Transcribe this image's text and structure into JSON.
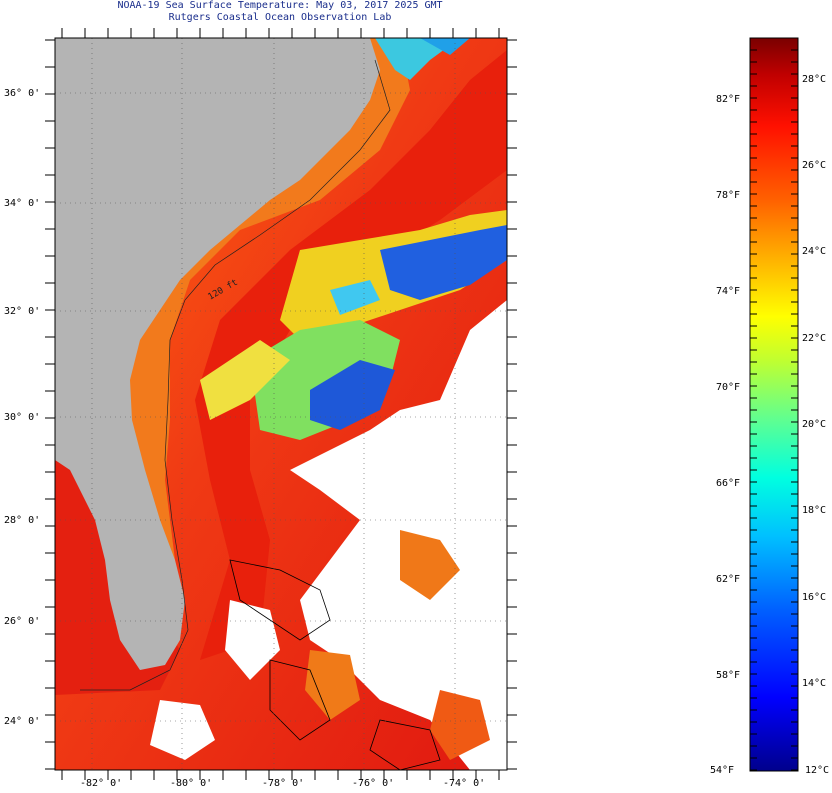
{
  "title": {
    "line1": "NOAA-19 Sea Surface Temperature:  May 03, 2017 2025 GMT",
    "line2": "Rutgers Coastal Ocean Observation Lab"
  },
  "map": {
    "region": "U.S. Southeast coast, Florida, Bahamas, western Atlantic",
    "lat_labels": [
      "36° 0'",
      "34° 0'",
      "32° 0'",
      "30° 0'",
      "28° 0'",
      "26° 0'",
      "24° 0'"
    ],
    "lon_labels": [
      "-82° 0'",
      "-80° 0'",
      "-78° 0'",
      "-76° 0'",
      "-74° 0'"
    ],
    "contour_label": "120 ft",
    "colors": {
      "land": "#b4b4b4",
      "cloud": "#ffffff",
      "warm_water": "#e81e10",
      "shelf_water": "#f07a18",
      "cool_water": "#1e6ee0"
    }
  },
  "colorbar": {
    "fahrenheit_labels": [
      "82°F",
      "78°F",
      "74°F",
      "70°F",
      "66°F",
      "62°F",
      "58°F",
      "54°F"
    ],
    "celsius_labels": [
      "28°C",
      "26°C",
      "24°C",
      "22°C",
      "20°C",
      "18°C",
      "16°C",
      "14°C",
      "12°C"
    ],
    "range_c": [
      12,
      29
    ],
    "colormap": [
      "#00008c",
      "#0000ff",
      "#0080ff",
      "#00e0ff",
      "#40ffb0",
      "#a0ff40",
      "#ffff00",
      "#ffb000",
      "#ff6000",
      "#ff0000",
      "#c00000",
      "#7a0000"
    ]
  }
}
